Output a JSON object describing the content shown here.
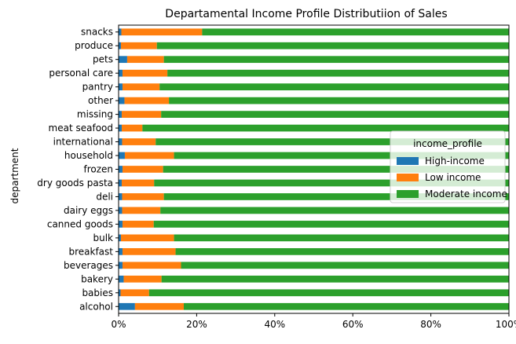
{
  "chart_data": {
    "type": "bar",
    "orientation": "horizontal",
    "stacked": true,
    "title": "Departamental Income Profile Distributiion of Sales",
    "xlabel": "",
    "ylabel": "department",
    "xlim": [
      0,
      1.0
    ],
    "x_ticks": [
      "0%",
      "20%",
      "40%",
      "60%",
      "80%",
      "100%"
    ],
    "x_tick_values": [
      0,
      0.2,
      0.4,
      0.6,
      0.8,
      1.0
    ],
    "grid": false,
    "legend": {
      "title": "income_profile",
      "placement": "center-right"
    },
    "categories": [
      "alcohol",
      "babies",
      "bakery",
      "beverages",
      "breakfast",
      "bulk",
      "canned goods",
      "dairy eggs",
      "deli",
      "dry goods pasta",
      "frozen",
      "household",
      "international",
      "meat seafood",
      "missing",
      "other",
      "pantry",
      "personal care",
      "pets",
      "produce",
      "snacks"
    ],
    "series": [
      {
        "name": "High-income",
        "color": "#1f77b4",
        "values": [
          0.042,
          0.005,
          0.013,
          0.01,
          0.01,
          0.006,
          0.01,
          0.009,
          0.009,
          0.008,
          0.01,
          0.016,
          0.009,
          0.008,
          0.008,
          0.015,
          0.01,
          0.01,
          0.022,
          0.006,
          0.007
        ]
      },
      {
        "name": "Low income",
        "color": "#ff7f0e",
        "values": [
          0.125,
          0.073,
          0.097,
          0.15,
          0.136,
          0.136,
          0.08,
          0.098,
          0.107,
          0.083,
          0.104,
          0.126,
          0.086,
          0.053,
          0.101,
          0.114,
          0.095,
          0.115,
          0.094,
          0.092,
          0.207
        ]
      },
      {
        "name": "Moderate income",
        "color": "#2ca02c",
        "values": [
          0.833,
          0.922,
          0.89,
          0.84,
          0.854,
          0.858,
          0.91,
          0.893,
          0.884,
          0.909,
          0.886,
          0.858,
          0.905,
          0.939,
          0.891,
          0.871,
          0.895,
          0.875,
          0.884,
          0.902,
          0.786
        ]
      }
    ]
  }
}
